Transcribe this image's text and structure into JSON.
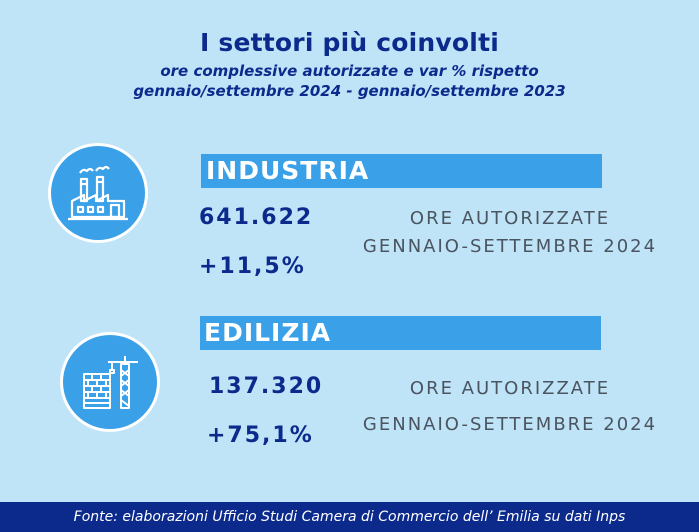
{
  "header": {
    "title": "I settori più coinvolti",
    "subtitle_line1": "ore complessive autorizzate e var % rispetto",
    "subtitle_line2": "gennaio/settembre 2024 - gennaio/settembre 2023"
  },
  "sectors": [
    {
      "name": "INDUSTRIA",
      "icon": "factory-icon",
      "hours": "641.622",
      "change": "+11,5%",
      "desc_line1": "ORE AUTORIZZATE",
      "desc_line2": "GENNAIO-SETTEMBRE 2024"
    },
    {
      "name": "EDILIZIA",
      "icon": "construction-crane-icon",
      "hours": "137.320",
      "change": "+75,1%",
      "desc_line1": "ORE AUTORIZZATE",
      "desc_line2": "GENNAIO-SETTEMBRE 2024"
    }
  ],
  "footer": {
    "source": "Fonte: elaborazioni Ufficio Studi Camera di Commercio dell’ Emilia su dati Inps"
  },
  "colors": {
    "background": "#bfe3f7",
    "accent": "#3aa0e8",
    "navy": "#0b2a8c"
  }
}
